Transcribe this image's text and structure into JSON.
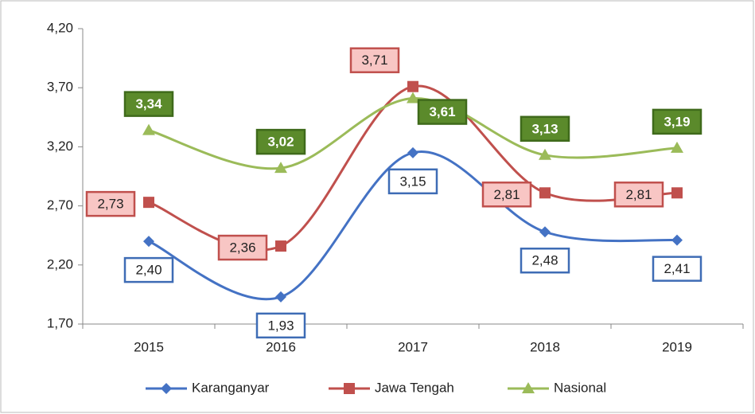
{
  "chart_data": {
    "type": "line",
    "categories": [
      "2015",
      "2016",
      "2017",
      "2018",
      "2019"
    ],
    "series": [
      {
        "name": "Karanganyar",
        "color": "#4472c4",
        "marker": "diamond",
        "values": [
          2.4,
          1.93,
          3.15,
          2.48,
          2.41
        ],
        "value_labels": [
          "2,40",
          "1,93",
          "3,15",
          "2,48",
          "2,41"
        ]
      },
      {
        "name": "Jawa Tengah",
        "color": "#c0504d",
        "marker": "square",
        "values": [
          2.73,
          2.36,
          3.71,
          2.81,
          2.81
        ],
        "value_labels": [
          "2,73",
          "2,36",
          "3,71",
          "2,81",
          "2,81"
        ]
      },
      {
        "name": "Nasional",
        "color": "#9bbb59",
        "marker": "triangle",
        "values": [
          3.34,
          3.02,
          3.61,
          3.13,
          3.19
        ],
        "value_labels": [
          "3,34",
          "3,02",
          "3,61",
          "3,13",
          "3,19"
        ]
      }
    ],
    "ylim": [
      1.7,
      4.2
    ],
    "yticks": [
      {
        "value": 1.7,
        "label": "1,70"
      },
      {
        "value": 2.2,
        "label": "2,20"
      },
      {
        "value": 2.7,
        "label": "2,70"
      },
      {
        "value": 3.2,
        "label": "3,20"
      },
      {
        "value": 3.7,
        "label": "3,70"
      },
      {
        "value": 4.2,
        "label": "4,20"
      }
    ],
    "smooth": true,
    "grid": false,
    "legend": "bottom"
  }
}
